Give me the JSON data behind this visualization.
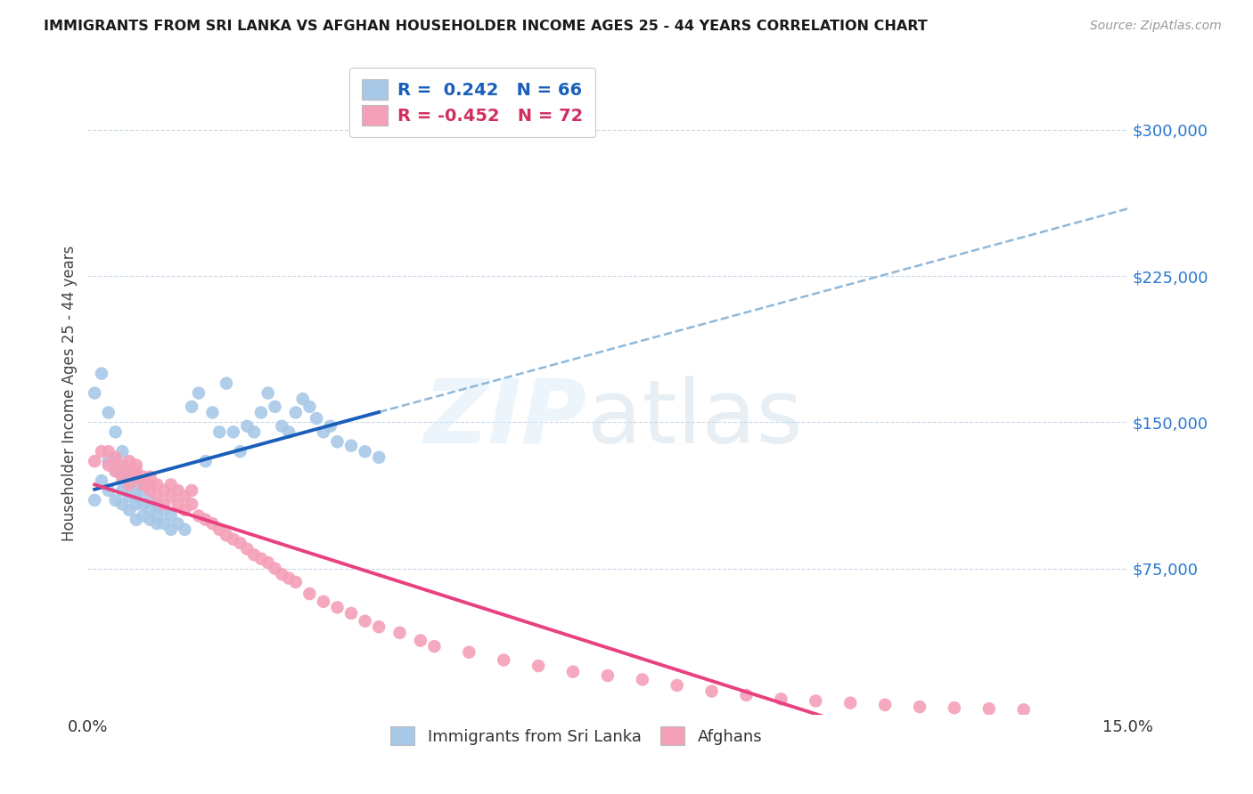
{
  "title": "IMMIGRANTS FROM SRI LANKA VS AFGHAN HOUSEHOLDER INCOME AGES 25 - 44 YEARS CORRELATION CHART",
  "source": "Source: ZipAtlas.com",
  "ylabel": "Householder Income Ages 25 - 44 years",
  "yticks": [
    75000,
    150000,
    225000,
    300000
  ],
  "ytick_labels": [
    "$75,000",
    "$150,000",
    "$225,000",
    "$300,000"
  ],
  "xlim": [
    0.0,
    0.15
  ],
  "ylim": [
    0,
    330000
  ],
  "sri_lanka_R": "0.242",
  "sri_lanka_N": "66",
  "afghan_R": "-0.452",
  "afghan_N": "72",
  "sri_lanka_color": "#a8c8e8",
  "afghan_color": "#f4a0b8",
  "sri_lanka_line_color": "#1a5fba",
  "afghan_line_color": "#e84080",
  "dashed_line_color": "#90b8d8",
  "sri_lanka_x": [
    0.001,
    0.001,
    0.002,
    0.002,
    0.003,
    0.003,
    0.003,
    0.004,
    0.004,
    0.004,
    0.004,
    0.005,
    0.005,
    0.005,
    0.005,
    0.005,
    0.006,
    0.006,
    0.006,
    0.006,
    0.007,
    0.007,
    0.007,
    0.007,
    0.007,
    0.008,
    0.008,
    0.008,
    0.009,
    0.009,
    0.009,
    0.009,
    0.01,
    0.01,
    0.01,
    0.011,
    0.011,
    0.012,
    0.012,
    0.013,
    0.014,
    0.015,
    0.016,
    0.017,
    0.018,
    0.019,
    0.02,
    0.021,
    0.022,
    0.023,
    0.024,
    0.025,
    0.026,
    0.027,
    0.028,
    0.029,
    0.03,
    0.031,
    0.032,
    0.033,
    0.034,
    0.035,
    0.036,
    0.038,
    0.04,
    0.042
  ],
  "sri_lanka_y": [
    110000,
    165000,
    120000,
    175000,
    115000,
    130000,
    155000,
    110000,
    125000,
    130000,
    145000,
    108000,
    115000,
    120000,
    125000,
    135000,
    105000,
    112000,
    118000,
    122000,
    100000,
    108000,
    112000,
    118000,
    122000,
    102000,
    108000,
    115000,
    100000,
    105000,
    110000,
    118000,
    98000,
    102000,
    108000,
    98000,
    105000,
    95000,
    102000,
    98000,
    95000,
    158000,
    165000,
    130000,
    155000,
    145000,
    170000,
    145000,
    135000,
    148000,
    145000,
    155000,
    165000,
    158000,
    148000,
    145000,
    155000,
    162000,
    158000,
    152000,
    145000,
    148000,
    140000,
    138000,
    135000,
    132000
  ],
  "afghan_x": [
    0.001,
    0.002,
    0.003,
    0.003,
    0.004,
    0.004,
    0.005,
    0.005,
    0.006,
    0.006,
    0.006,
    0.007,
    0.007,
    0.007,
    0.008,
    0.008,
    0.009,
    0.009,
    0.009,
    0.01,
    0.01,
    0.011,
    0.011,
    0.012,
    0.012,
    0.013,
    0.013,
    0.014,
    0.014,
    0.015,
    0.015,
    0.016,
    0.017,
    0.018,
    0.019,
    0.02,
    0.021,
    0.022,
    0.023,
    0.024,
    0.025,
    0.026,
    0.027,
    0.028,
    0.029,
    0.03,
    0.032,
    0.034,
    0.036,
    0.038,
    0.04,
    0.042,
    0.045,
    0.048,
    0.05,
    0.055,
    0.06,
    0.065,
    0.07,
    0.075,
    0.08,
    0.085,
    0.09,
    0.095,
    0.1,
    0.105,
    0.11,
    0.115,
    0.12,
    0.125,
    0.13,
    0.135
  ],
  "afghan_y": [
    130000,
    135000,
    128000,
    135000,
    125000,
    132000,
    122000,
    128000,
    125000,
    130000,
    118000,
    122000,
    125000,
    128000,
    118000,
    122000,
    115000,
    118000,
    122000,
    112000,
    118000,
    108000,
    115000,
    112000,
    118000,
    115000,
    108000,
    105000,
    112000,
    108000,
    115000,
    102000,
    100000,
    98000,
    95000,
    92000,
    90000,
    88000,
    85000,
    82000,
    80000,
    78000,
    75000,
    72000,
    70000,
    68000,
    62000,
    58000,
    55000,
    52000,
    48000,
    45000,
    42000,
    38000,
    35000,
    32000,
    28000,
    25000,
    22000,
    20000,
    18000,
    15000,
    12000,
    10000,
    8000,
    7000,
    6000,
    5000,
    4000,
    3500,
    3000,
    2500
  ]
}
